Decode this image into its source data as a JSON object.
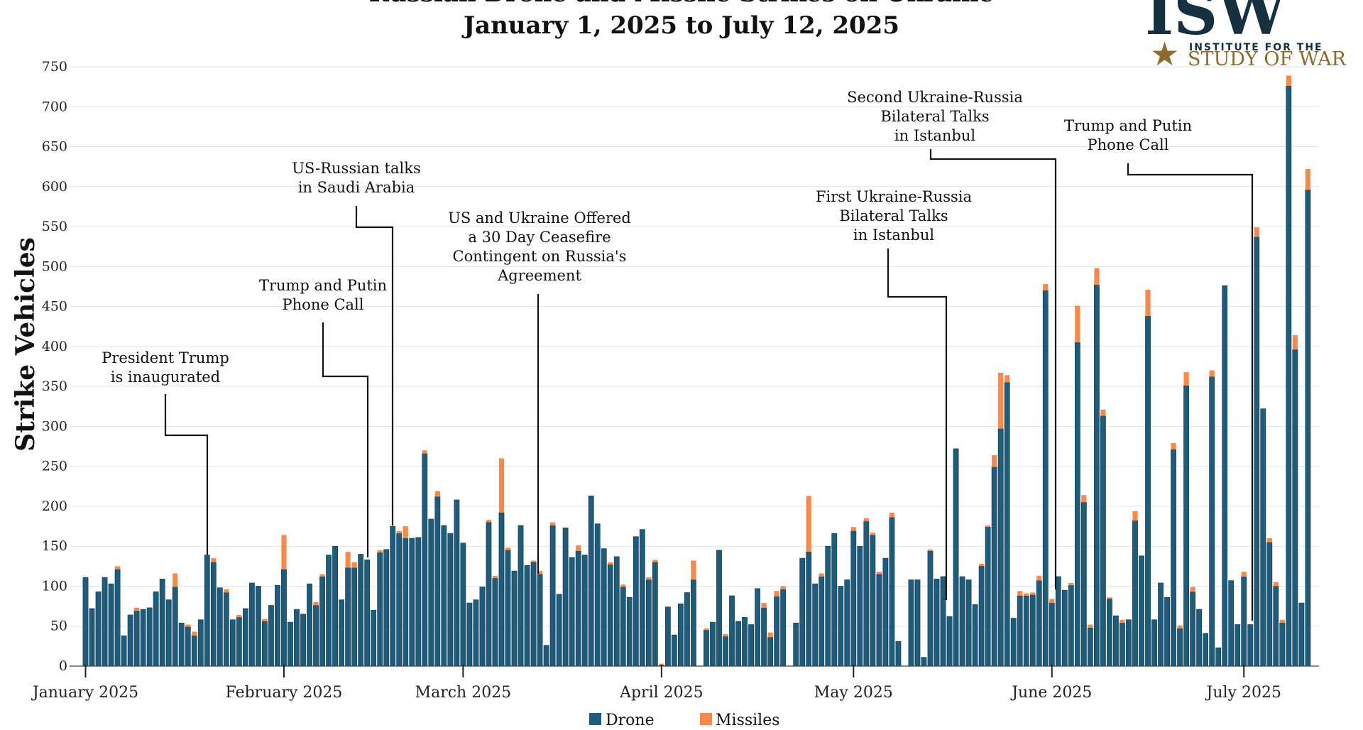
{
  "chart_data": {
    "type": "bar",
    "stacked": true,
    "title": [
      "Russian Drone and Missile Strikes on Ukraine",
      "January 1, 2025 to July 12, 2025"
    ],
    "xlabel": "",
    "ylabel": "Strike Vehicles",
    "ylim": [
      0,
      750
    ],
    "yticks": [
      0,
      50,
      100,
      150,
      200,
      250,
      300,
      350,
      400,
      450,
      500,
      550,
      600,
      650,
      700,
      750
    ],
    "grid": true,
    "x_range": [
      "2025-01-01",
      "2025-07-12"
    ],
    "x_ticks": [
      {
        "date": "2025-01-01",
        "label": "January 2025"
      },
      {
        "date": "2025-02-01",
        "label": "February 2025"
      },
      {
        "date": "2025-03-01",
        "label": "March 2025"
      },
      {
        "date": "2025-04-01",
        "label": "April 2025"
      },
      {
        "date": "2025-05-01",
        "label": "May 2025"
      },
      {
        "date": "2025-06-01",
        "label": "June 2025"
      },
      {
        "date": "2025-07-01",
        "label": "July 2025"
      }
    ],
    "legend": {
      "placement": "bottom-center"
    },
    "series": [
      {
        "name": "Drone",
        "color": "#1f5b7a"
      },
      {
        "name": "Missiles",
        "color": "#f58a4c"
      }
    ],
    "drone": [
      111,
      72,
      93,
      111,
      103,
      121,
      38,
      64,
      69,
      71,
      73,
      93,
      109,
      83,
      99,
      54,
      49,
      38,
      58,
      139,
      130,
      98,
      92,
      58,
      61,
      72,
      104,
      100,
      56,
      76,
      101,
      121,
      55,
      71,
      65,
      103,
      76,
      112,
      139,
      150,
      83,
      123,
      123,
      140,
      133,
      70,
      142,
      146,
      175,
      166,
      160,
      160,
      161,
      266,
      184,
      212,
      176,
      166,
      208,
      154,
      79,
      83,
      99,
      180,
      110,
      192,
      145,
      119,
      176,
      126,
      130,
      115,
      26,
      176,
      90,
      173,
      136,
      144,
      139,
      213,
      178,
      147,
      127,
      137,
      99,
      86,
      162,
      171,
      108,
      130,
      1,
      74,
      39,
      78,
      92,
      108,
      0,
      45,
      55,
      145,
      37,
      88,
      56,
      61,
      52,
      97,
      73,
      36,
      87,
      96,
      0,
      54,
      135,
      143,
      103,
      112,
      150,
      166,
      100,
      108,
      169,
      150,
      181,
      164,
      115,
      135,
      186,
      31,
      0,
      108,
      108,
      11,
      144,
      109,
      112,
      62,
      272,
      112,
      108,
      77,
      125,
      174,
      249,
      297,
      355,
      60,
      88,
      88,
      89,
      107,
      470,
      79,
      112,
      95,
      101,
      405,
      205,
      48,
      477,
      313,
      84,
      63,
      54,
      58,
      182,
      138,
      438,
      58,
      104,
      86,
      271,
      47,
      351,
      93,
      71,
      41,
      362,
      23,
      476,
      107,
      52,
      112,
      52,
      537,
      322,
      155,
      100,
      54,
      726,
      396,
      79,
      596
    ],
    "missiles": [
      0,
      0,
      0,
      0,
      0,
      4,
      0,
      0,
      4,
      0,
      0,
      0,
      0,
      0,
      17,
      0,
      3,
      5,
      0,
      0,
      5,
      0,
      4,
      0,
      3,
      0,
      0,
      0,
      3,
      0,
      0,
      43,
      0,
      0,
      0,
      0,
      4,
      3,
      0,
      0,
      0,
      20,
      7,
      0,
      0,
      0,
      3,
      0,
      0,
      3,
      15,
      0,
      0,
      4,
      0,
      7,
      0,
      0,
      0,
      0,
      0,
      0,
      0,
      3,
      3,
      68,
      3,
      0,
      0,
      0,
      2,
      4,
      0,
      4,
      0,
      0,
      0,
      7,
      0,
      0,
      0,
      0,
      3,
      0,
      3,
      0,
      0,
      0,
      3,
      3,
      2,
      0,
      0,
      0,
      0,
      24,
      0,
      2,
      0,
      0,
      3,
      0,
      0,
      0,
      0,
      0,
      6,
      6,
      7,
      4,
      0,
      0,
      0,
      70,
      0,
      4,
      0,
      0,
      0,
      0,
      5,
      0,
      4,
      3,
      3,
      0,
      6,
      0,
      0,
      0,
      0,
      0,
      2,
      0,
      0,
      0,
      0,
      0,
      0,
      0,
      3,
      2,
      15,
      70,
      9,
      0,
      6,
      3,
      3,
      6,
      8,
      5,
      0,
      0,
      3,
      46,
      9,
      4,
      21,
      8,
      2,
      0,
      4,
      0,
      12,
      0,
      33,
      0,
      0,
      0,
      8,
      4,
      17,
      6,
      0,
      0,
      8,
      0,
      0,
      0,
      0,
      6,
      0,
      12,
      0,
      5,
      5,
      4,
      13,
      18,
      0,
      26
    ]
  },
  "annotations": [
    {
      "id": "inauguration",
      "lines": [
        "President Trump",
        "is inaugurated"
      ]
    },
    {
      "id": "phone-call-1",
      "lines": [
        "Trump and Putin",
        "Phone Call"
      ]
    },
    {
      "id": "saudi-talks",
      "lines": [
        "US-Russian talks",
        "in Saudi Arabia"
      ]
    },
    {
      "id": "ceasefire-offer",
      "lines": [
        "US and Ukraine Offered",
        "a 30 Day Ceasefire",
        "Contingent on Russia's",
        "Agreement"
      ]
    },
    {
      "id": "first-talks",
      "lines": [
        "First Ukraine-Russia",
        "Bilateral Talks",
        "in Istanbul"
      ]
    },
    {
      "id": "second-talks",
      "lines": [
        "Second Ukraine-Russia",
        "Bilateral Talks",
        "in Istanbul"
      ]
    },
    {
      "id": "phone-call-2",
      "lines": [
        "Trump and Putin",
        "Phone Call"
      ]
    }
  ],
  "logo": {
    "letters": "ISW",
    "line1": "INSTITUTE FOR THE",
    "line2": "STUDY OF WAR",
    "star": "★"
  }
}
